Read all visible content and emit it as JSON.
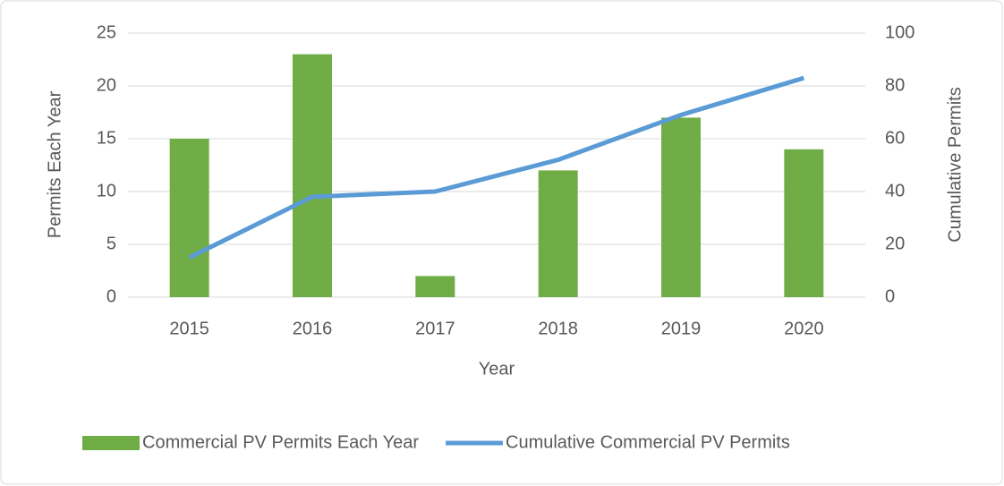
{
  "chart_data": {
    "type": "bar",
    "x_label": "Year",
    "y_label": "Permits Each Year",
    "y2_label": "Cumulative Permits",
    "categories": [
      "2015",
      "2016",
      "2017",
      "2018",
      "2019",
      "2020"
    ],
    "series": [
      {
        "name": "Commercial PV Permits Each Year",
        "color": "#70ad47",
        "values": [
          15,
          23,
          2,
          12,
          17,
          14
        ]
      },
      {
        "name": "Cumulative Commercial PV Permits",
        "color": "#5b9bd5",
        "type": "line",
        "axis": "y2",
        "values": [
          15,
          38,
          40,
          52,
          69,
          83
        ]
      }
    ],
    "ylim": [
      0,
      25
    ],
    "yticks": [
      0,
      5,
      10,
      15,
      20,
      25
    ],
    "y2lim": [
      0,
      100
    ],
    "y2ticks": [
      0,
      20,
      40,
      60,
      80,
      100
    ],
    "grid": true,
    "legend": "bottom"
  }
}
